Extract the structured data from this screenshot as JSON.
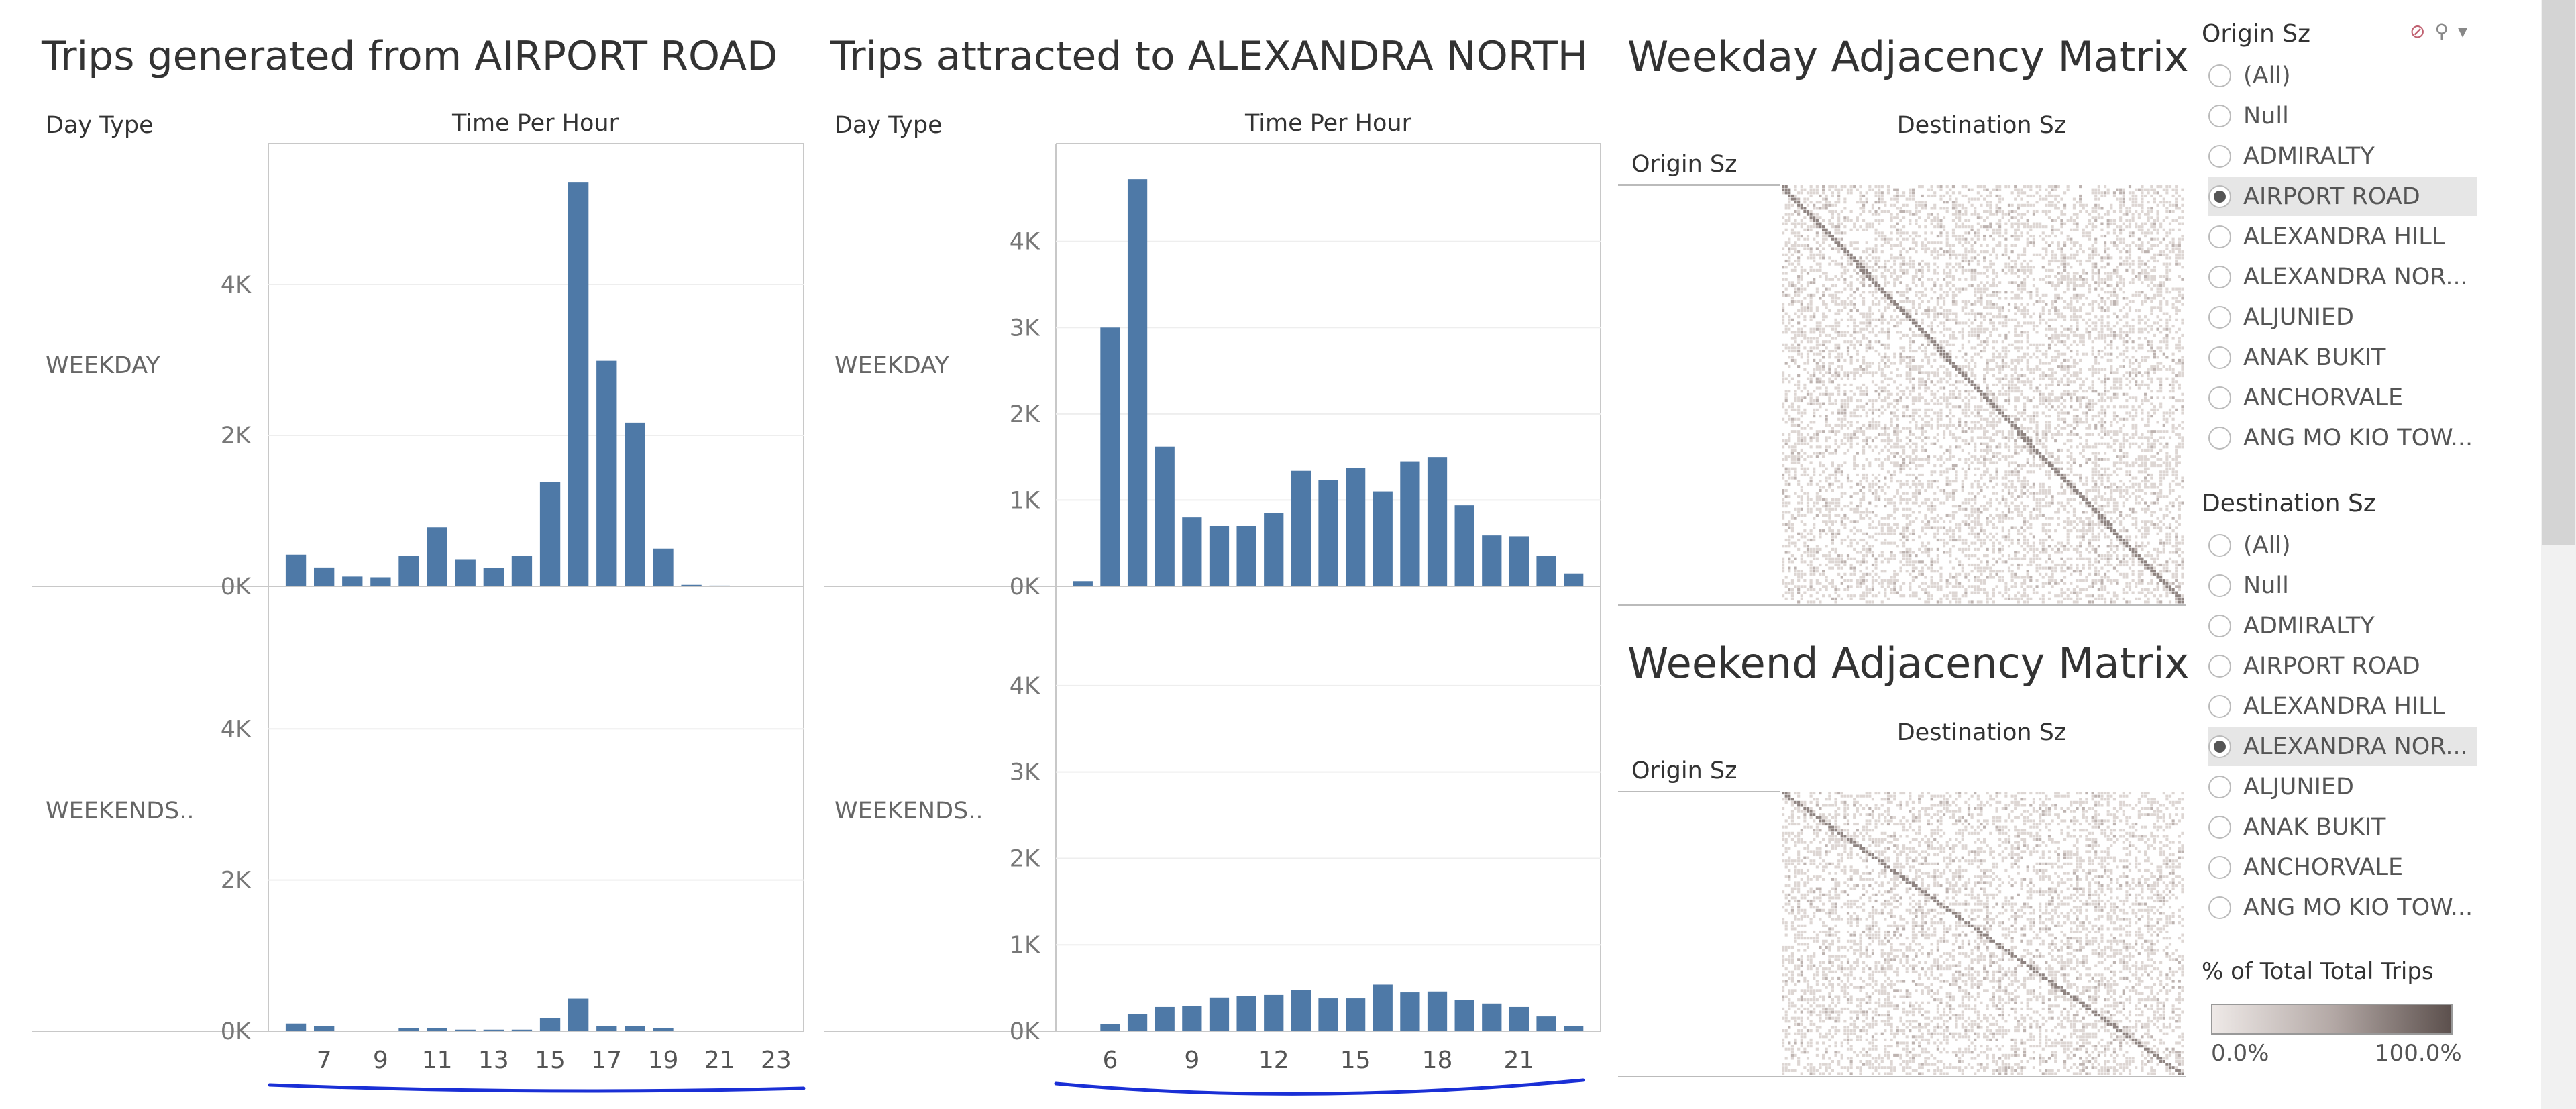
{
  "left_chart": {
    "title": "Trips generated from AIRPORT ROAD",
    "row_header": "Day Type",
    "col_header": "Time Per Hour",
    "rows": [
      "WEEKDAY",
      "WEEKENDS.."
    ],
    "y_ticks": [
      "4K",
      "2K",
      "0K"
    ]
  },
  "mid_chart": {
    "title": "Trips attracted to ALEXANDRA NORTH",
    "row_header": "Day Type",
    "col_header": "Time Per Hour",
    "rows": [
      "WEEKDAY",
      "WEEKENDS.."
    ],
    "y_ticks": [
      "4K",
      "3K",
      "2K",
      "1K",
      "0K"
    ]
  },
  "weekday_matrix": {
    "title": "Weekday Adjacency Matrix",
    "col_header": "Destination Sz",
    "row_header": "Origin Sz"
  },
  "weekend_matrix": {
    "title": "Weekend Adjacency Matrix",
    "col_header": "Destination Sz",
    "row_header": "Origin Sz"
  },
  "filters": {
    "origin": {
      "title": "Origin Sz",
      "options": [
        "(All)",
        "Null",
        "ADMIRALTY",
        "AIRPORT ROAD",
        "ALEXANDRA HILL",
        "ALEXANDRA NOR...",
        "ALJUNIED",
        "ANAK BUKIT",
        "ANCHORVALE",
        "ANG MO KIO TOW..."
      ],
      "selected": "AIRPORT ROAD"
    },
    "destination": {
      "title": "Destination Sz",
      "options": [
        "(All)",
        "Null",
        "ADMIRALTY",
        "AIRPORT ROAD",
        "ALEXANDRA HILL",
        "ALEXANDRA NOR...",
        "ALJUNIED",
        "ANAK BUKIT",
        "ANCHORVALE",
        "ANG MO KIO TOW..."
      ],
      "selected": "ALEXANDRA NOR..."
    },
    "icons": [
      "clear-filter-icon",
      "search-icon",
      "dropdown-icon"
    ]
  },
  "legend": {
    "title": "% of Total Total Trips",
    "min": "0.0%",
    "max": "100.0%"
  },
  "colors": {
    "bar": "#4e79a7",
    "matrix_light": "#eee9e7",
    "matrix_dark": "#5c504d",
    "annotation": "#1a2fd6"
  },
  "chart_data": [
    {
      "type": "bar",
      "title": "Trips generated from AIRPORT ROAD",
      "xlabel": "Time Per Hour",
      "ylabel": "",
      "categories": [
        6,
        7,
        8,
        9,
        10,
        11,
        12,
        13,
        14,
        15,
        16,
        17,
        18,
        19,
        20,
        21,
        22,
        23
      ],
      "x_tick_labels": [
        "7",
        "9",
        "11",
        "13",
        "15",
        "17",
        "19",
        "21",
        "23"
      ],
      "ylim": [
        0,
        5600
      ],
      "series": [
        {
          "name": "WEEKDAY",
          "values": [
            420,
            250,
            130,
            120,
            400,
            780,
            360,
            240,
            400,
            1380,
            5350,
            2990,
            2170,
            500,
            20,
            10,
            0,
            0
          ]
        },
        {
          "name": "WEEKENDS..",
          "values": [
            100,
            70,
            0,
            0,
            40,
            40,
            20,
            20,
            20,
            170,
            430,
            70,
            70,
            40,
            0,
            0,
            0,
            0
          ]
        }
      ]
    },
    {
      "type": "bar",
      "title": "Trips attracted to ALEXANDRA NORTH",
      "xlabel": "Time Per Hour",
      "ylabel": "",
      "categories": [
        5,
        6,
        7,
        8,
        9,
        10,
        11,
        12,
        13,
        14,
        15,
        16,
        17,
        18,
        19,
        20,
        21,
        22,
        23
      ],
      "x_tick_labels": [
        "6",
        "9",
        "12",
        "15",
        "18",
        "21"
      ],
      "ylim": [
        0,
        4900
      ],
      "series": [
        {
          "name": "WEEKDAY",
          "values": [
            60,
            3000,
            4720,
            1620,
            800,
            700,
            700,
            850,
            1340,
            1230,
            1370,
            1100,
            1450,
            1500,
            940,
            590,
            580,
            350,
            150
          ]
        },
        {
          "name": "WEEKENDS..",
          "values": [
            0,
            80,
            200,
            280,
            290,
            390,
            410,
            420,
            480,
            380,
            380,
            540,
            450,
            460,
            360,
            320,
            280,
            170,
            60
          ]
        }
      ]
    }
  ]
}
